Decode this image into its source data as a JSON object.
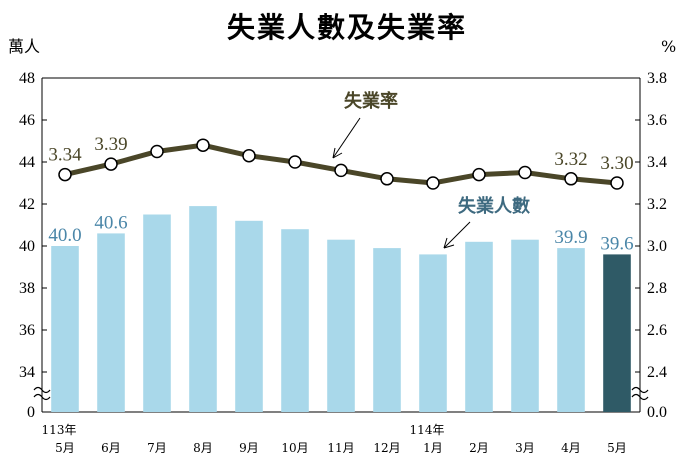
{
  "chart_data": {
    "title": "失業人數及失業率",
    "type": "bar+line",
    "left_unit": "萬人",
    "right_unit": "%",
    "categories": [
      "5月",
      "6月",
      "7月",
      "8月",
      "9月",
      "10月",
      "11月",
      "12月",
      "1月",
      "2月",
      "3月",
      "4月",
      "5月"
    ],
    "year_labels": [
      {
        "index": 0,
        "text": "113年"
      },
      {
        "index": 8,
        "text": "114年"
      }
    ],
    "y_left": {
      "ticks": [
        "0",
        "34",
        "36",
        "38",
        "40",
        "42",
        "44",
        "46",
        "48"
      ],
      "range": [
        34,
        48
      ],
      "break": true
    },
    "y_right": {
      "ticks": [
        "0.0",
        "2.4",
        "2.6",
        "2.8",
        "3.0",
        "3.2",
        "3.4",
        "3.6",
        "3.8"
      ],
      "range": [
        2.4,
        3.8
      ],
      "break": true
    },
    "series": [
      {
        "name": "失業人數",
        "type": "bar",
        "axis": "left",
        "values": [
          40.0,
          40.6,
          41.5,
          41.9,
          41.2,
          40.8,
          40.3,
          39.9,
          39.6,
          40.2,
          40.3,
          39.9,
          39.6
        ],
        "data_labels": [
          {
            "index": 0,
            "text": "40.0"
          },
          {
            "index": 1,
            "text": "40.6"
          },
          {
            "index": 11,
            "text": "39.9"
          },
          {
            "index": 12,
            "text": "39.6"
          }
        ],
        "color": "#a9d8ea",
        "highlight_color": "#2f5a66"
      },
      {
        "name": "失業率",
        "type": "line",
        "axis": "right",
        "values": [
          3.34,
          3.39,
          3.45,
          3.48,
          3.43,
          3.4,
          3.36,
          3.32,
          3.3,
          3.34,
          3.35,
          3.32,
          3.3
        ],
        "data_labels": [
          {
            "index": 0,
            "text": "3.34"
          },
          {
            "index": 1,
            "text": "3.39"
          },
          {
            "index": 11,
            "text": "3.32"
          },
          {
            "index": 12,
            "text": "3.30"
          }
        ],
        "color": "#4a4628"
      }
    ],
    "annotations": {
      "line_label": "失業率",
      "bar_label": "失業人數"
    }
  }
}
